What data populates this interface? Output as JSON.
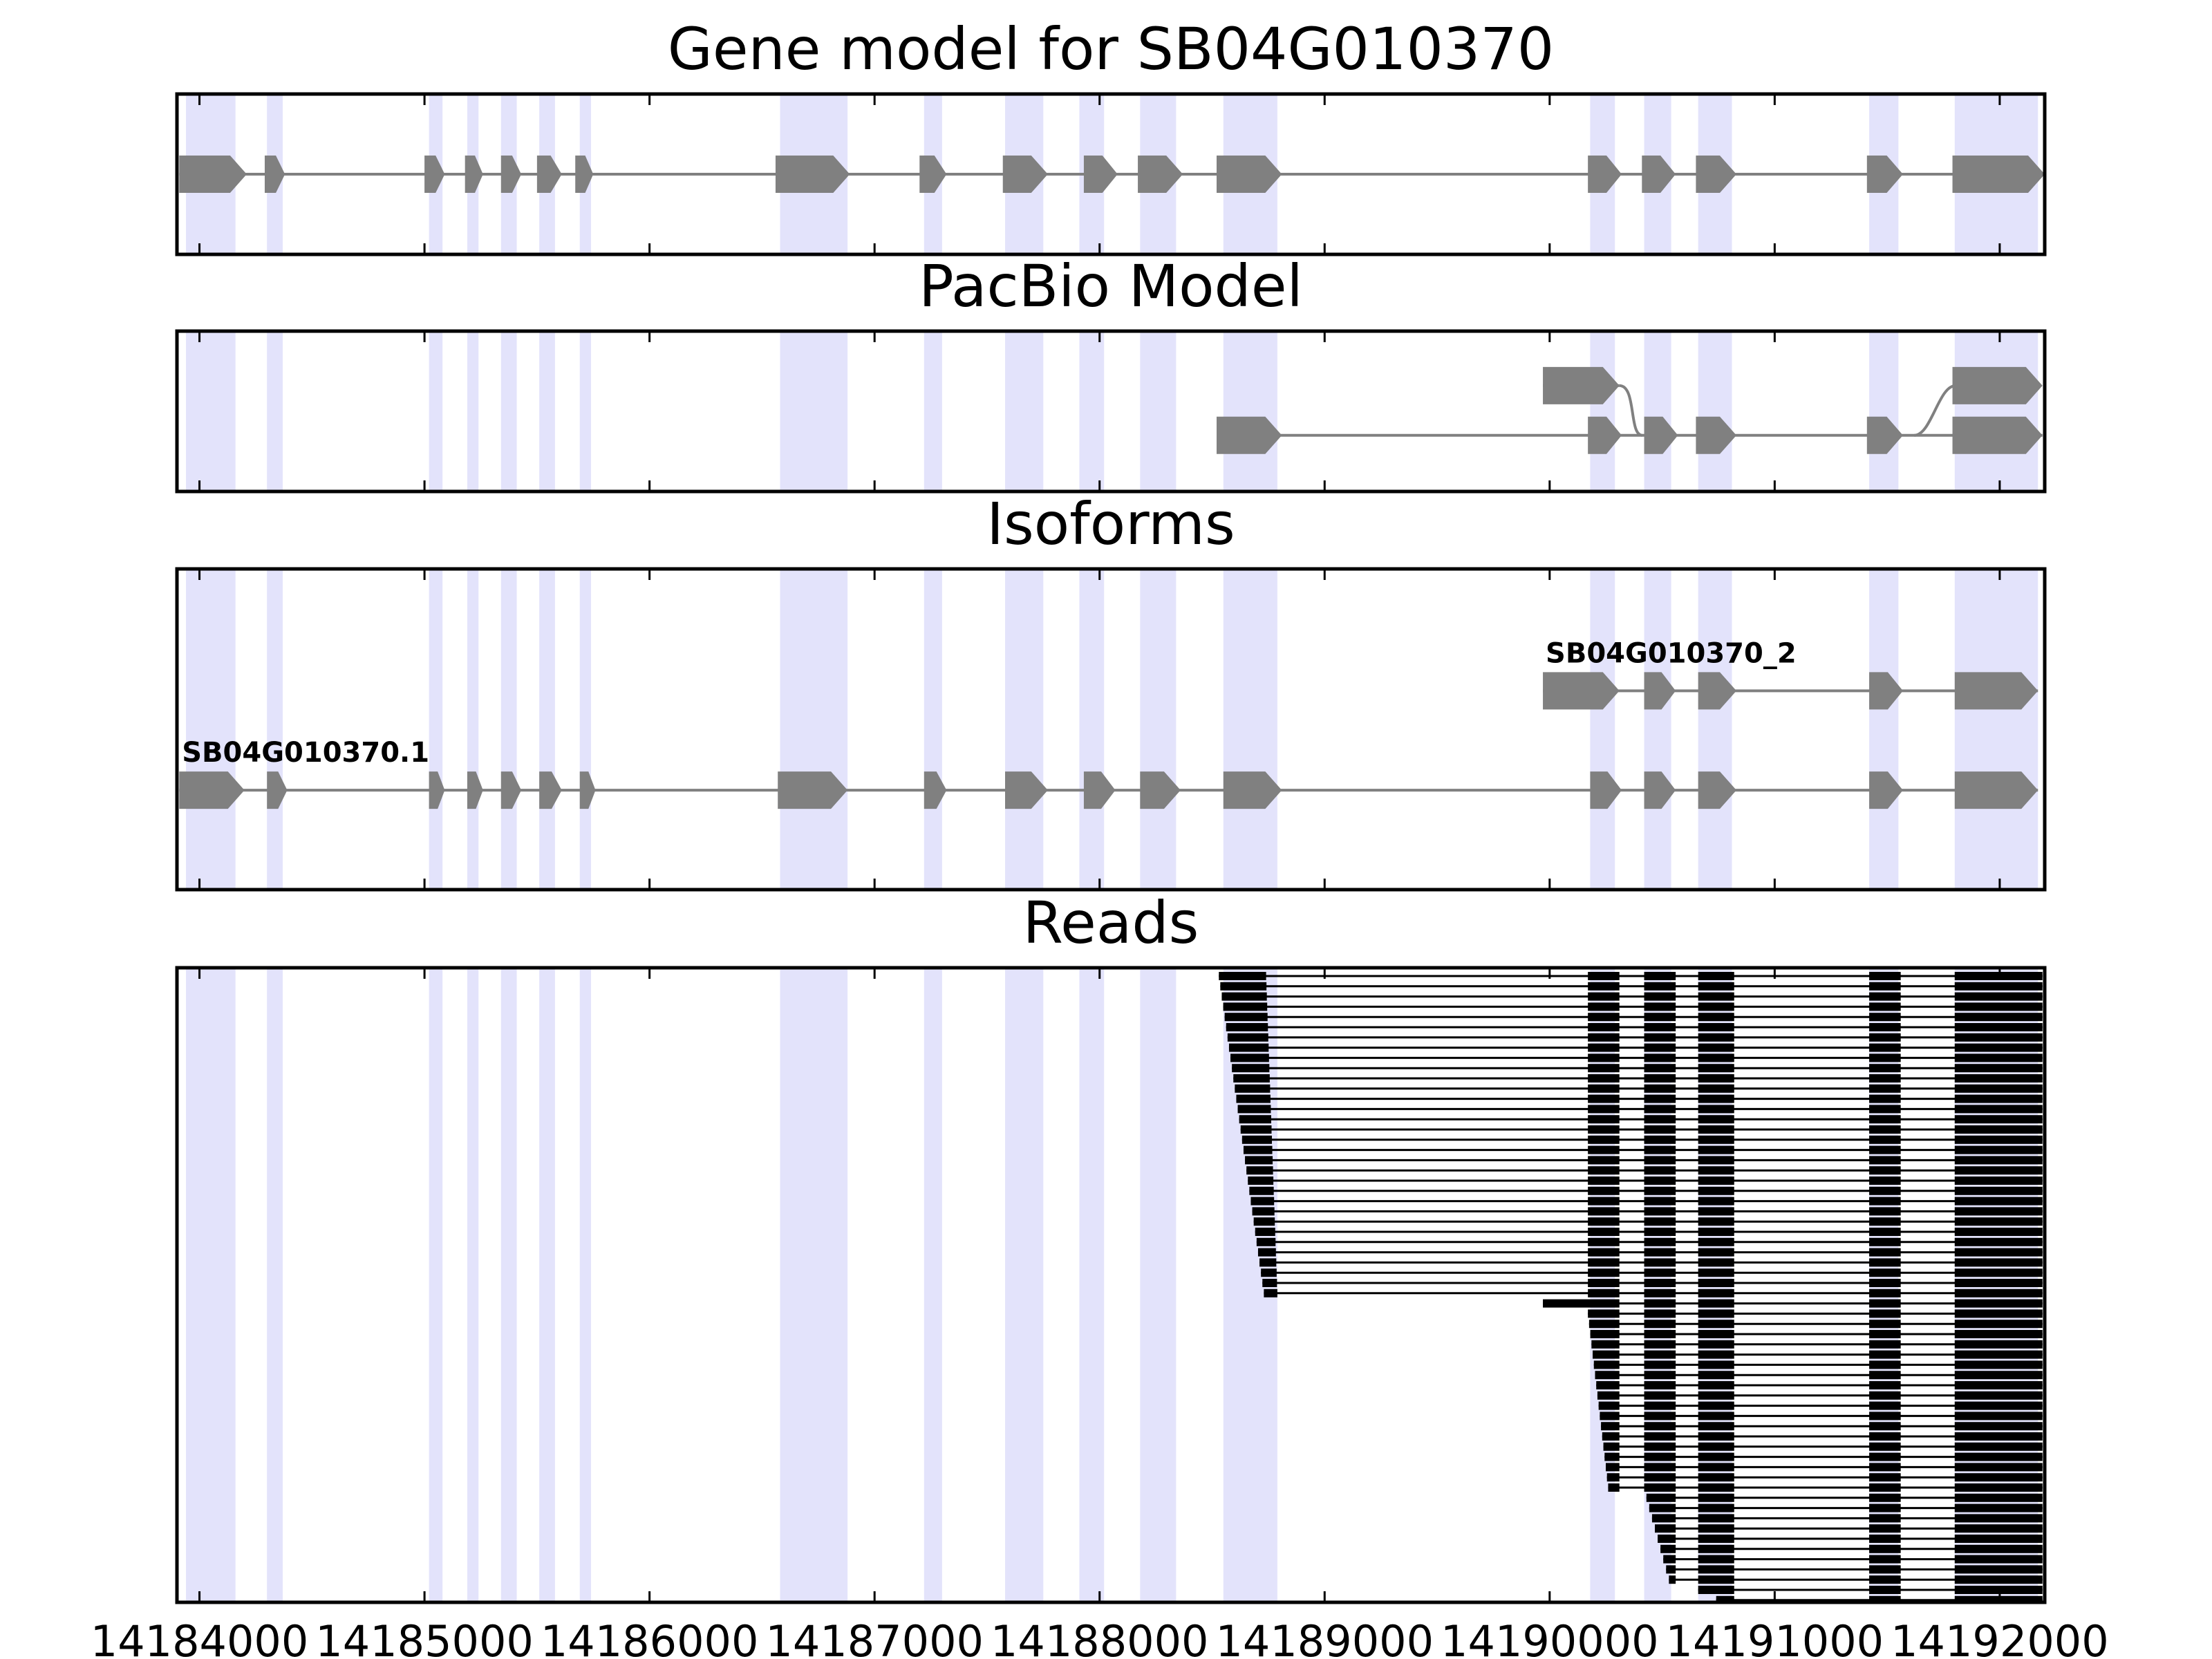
{
  "chart_data": {
    "type": "gene_structure",
    "x_unit": "genomic position (bp)",
    "xlim": [
      14183900,
      14192200
    ],
    "x_ticks": [
      14184000,
      14185000,
      14186000,
      14187000,
      14188000,
      14189000,
      14190000,
      14191000,
      14192000
    ],
    "x_tick_labels": [
      "14184000",
      "14185000",
      "14186000",
      "14187000",
      "14188000",
      "14189000",
      "14190000",
      "14191000",
      "14192000"
    ],
    "highlight_color": "#e3e3fb",
    "exon_color": "#808080",
    "read_color": "#000000",
    "highlight_regions": [
      [
        14183940,
        14184160
      ],
      [
        14184300,
        14184370
      ],
      [
        14185020,
        14185080
      ],
      [
        14185190,
        14185240
      ],
      [
        14185340,
        14185410
      ],
      [
        14185510,
        14185580
      ],
      [
        14185690,
        14185740
      ],
      [
        14186580,
        14186880
      ],
      [
        14187220,
        14187300
      ],
      [
        14187580,
        14187750
      ],
      [
        14187910,
        14188020
      ],
      [
        14188180,
        14188340
      ],
      [
        14188550,
        14188790
      ],
      [
        14190180,
        14190290
      ],
      [
        14190420,
        14190540
      ],
      [
        14190660,
        14190810
      ],
      [
        14191420,
        14191550
      ],
      [
        14191800,
        14192170
      ]
    ],
    "panels": [
      {
        "title": "Gene model for SB04G010370",
        "tracks": [
          {
            "label": "",
            "y": 0.5,
            "exons": [
              [
                14183910,
                14184210
              ],
              [
                14184290,
                14184380
              ],
              [
                14185000,
                14185090
              ],
              [
                14185180,
                14185260
              ],
              [
                14185340,
                14185430
              ],
              [
                14185500,
                14185610
              ],
              [
                14185670,
                14185750
              ],
              [
                14186560,
                14186890
              ],
              [
                14187200,
                14187320
              ],
              [
                14187570,
                14187770
              ],
              [
                14187930,
                14188080
              ],
              [
                14188170,
                14188370
              ],
              [
                14188520,
                14188810
              ],
              [
                14190170,
                14190320
              ],
              [
                14190410,
                14190560
              ],
              [
                14190650,
                14190830
              ],
              [
                14191410,
                14191570
              ],
              [
                14191790,
                14192200
              ]
            ]
          }
        ]
      },
      {
        "title": "PacBio Model",
        "tracks": [
          {
            "label": "",
            "y": 0.66,
            "exons": [
              [
                14189970,
                14190310
              ]
            ],
            "joins_to_lower": [
              14190320,
              14191620
            ]
          },
          {
            "label": "",
            "y": 0.35,
            "exons": [
              [
                14188520,
                14188810
              ],
              [
                14190170,
                14190320
              ],
              [
                14190420,
                14190570
              ],
              [
                14190650,
                14190830
              ],
              [
                14191410,
                14191570
              ],
              [
                14191790,
                14192190
              ]
            ]
          }
        ]
      },
      {
        "title": "Isoforms",
        "tracks": [
          {
            "label": "SB04G010370_2",
            "y": 0.62,
            "exons": [
              [
                14189970,
                14190310
              ],
              [
                14190420,
                14190560
              ],
              [
                14190660,
                14190830
              ],
              [
                14191420,
                14191570
              ],
              [
                14191800,
                14192170
              ]
            ]
          },
          {
            "label": "SB04G010370.1",
            "y": 0.31,
            "exons": [
              [
                14183910,
                14184200
              ],
              [
                14184300,
                14184390
              ],
              [
                14185020,
                14185090
              ],
              [
                14185190,
                14185260
              ],
              [
                14185340,
                14185430
              ],
              [
                14185510,
                14185610
              ],
              [
                14185690,
                14185760
              ],
              [
                14186570,
                14186880
              ],
              [
                14187220,
                14187320
              ],
              [
                14187580,
                14187770
              ],
              [
                14187930,
                14188070
              ],
              [
                14188180,
                14188360
              ],
              [
                14188550,
                14188810
              ],
              [
                14190180,
                14190320
              ],
              [
                14190420,
                14190560
              ],
              [
                14190660,
                14190830
              ],
              [
                14191420,
                14191570
              ],
              [
                14191800,
                14192170
              ]
            ]
          }
        ]
      },
      {
        "title": "Reads",
        "read_groups": [
          {
            "count": 32,
            "first_start": [
              14188530,
              14188740
            ],
            "last_start": [
              14188730,
              14188790
            ],
            "segments": [
              [
                14190170,
                14190310
              ],
              [
                14190420,
                14190560
              ],
              [
                14190660,
                14190820
              ],
              [
                14191420,
                14191560
              ],
              [
                14191800,
                14192190
              ]
            ]
          },
          {
            "count": 1,
            "first_start": [
              14189970,
              14190310
            ],
            "last_start": [
              14189970,
              14190310
            ],
            "segments": [
              [
                14190420,
                14190560
              ],
              [
                14190660,
                14190820
              ],
              [
                14191420,
                14191560
              ],
              [
                14191800,
                14192190
              ]
            ]
          },
          {
            "count": 18,
            "first_start": [
              14190170,
              14190310
            ],
            "last_start": [
              14190260,
              14190310
            ],
            "segments": [
              [
                14190420,
                14190560
              ],
              [
                14190660,
                14190820
              ],
              [
                14191420,
                14191560
              ],
              [
                14191800,
                14192190
              ]
            ]
          },
          {
            "count": 9,
            "first_start": [
              14190430,
              14190560
            ],
            "last_start": [
              14190530,
              14190560
            ],
            "segments": [
              [
                14190660,
                14190820
              ],
              [
                14191420,
                14191560
              ],
              [
                14191800,
                14192190
              ]
            ]
          },
          {
            "count": 2,
            "first_start": [
              14190660,
              14190820
            ],
            "last_start": [
              14190740,
              14190820
            ],
            "segments": [
              [
                14191420,
                14191560
              ],
              [
                14191800,
                14192190
              ]
            ]
          },
          {
            "count": 2,
            "first_start": [
              14191420,
              14191560
            ],
            "last_start": [
              14191420,
              14191560
            ],
            "segments": [
              [
                14191800,
                14192170
              ]
            ]
          }
        ]
      }
    ]
  }
}
